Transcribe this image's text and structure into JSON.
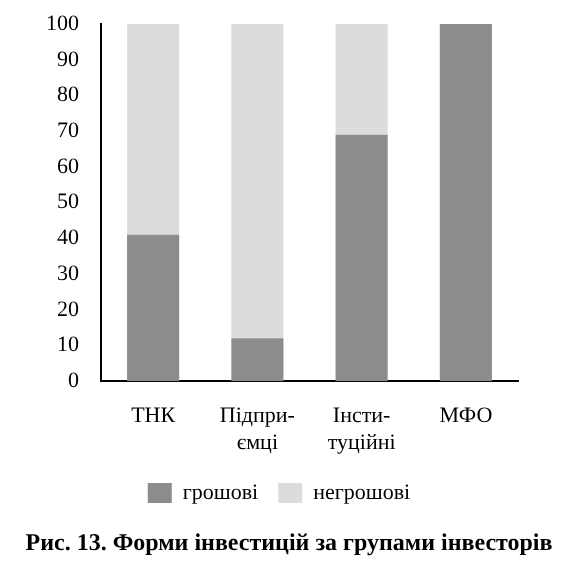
{
  "chart_data": {
    "type": "bar",
    "title": "Рис. 13. Форми інвестицій за групами інвесторів",
    "categories": [
      "ТНК",
      "Підпри-ємці",
      "Інсти-туційні",
      "МФО"
    ],
    "stacked": true,
    "series": [
      {
        "name": "грошові",
        "color": "#8c8c8c",
        "values": [
          41,
          12,
          69,
          100
        ]
      },
      {
        "name": "негрошові",
        "color": "#dcdcdc",
        "values": [
          59,
          88,
          31,
          0
        ]
      }
    ],
    "ylim": [
      0,
      100
    ],
    "yticks": [
      0,
      10,
      20,
      30,
      40,
      50,
      60,
      70,
      80,
      90,
      100
    ],
    "grid": false,
    "legend": "bottom"
  }
}
